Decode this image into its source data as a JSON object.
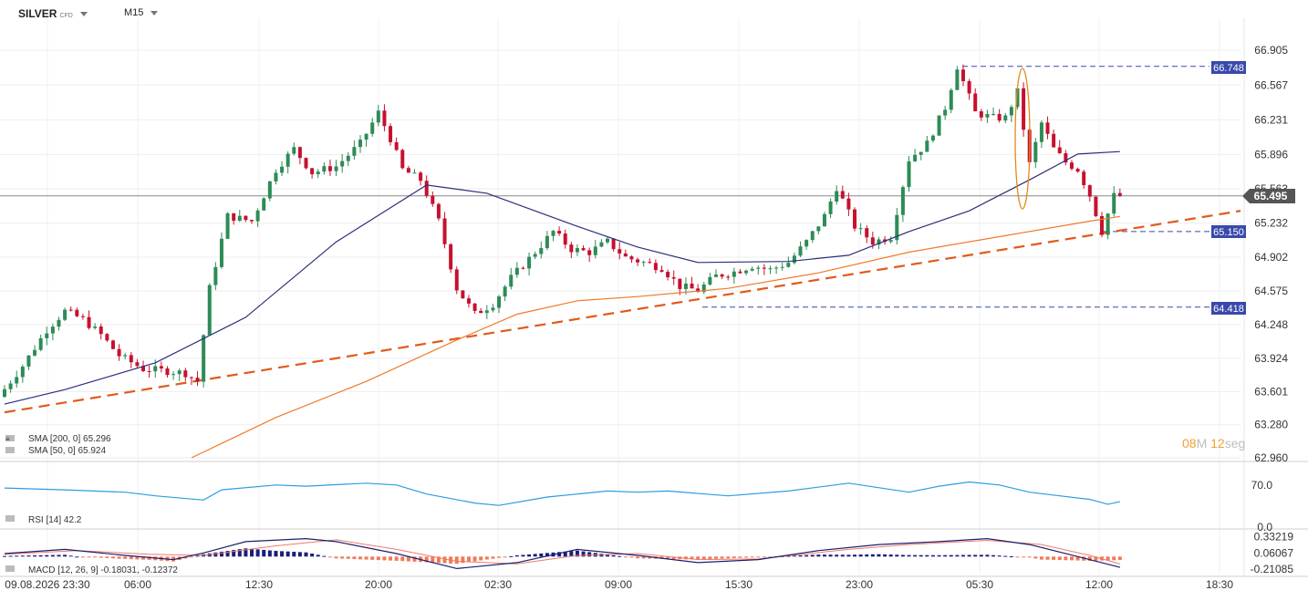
{
  "header": {
    "symbol": "SILVER",
    "instrument_type": "CFD",
    "timeframe": "M15"
  },
  "countdown": {
    "minutes": "08",
    "minutes_unit": "M",
    "seconds": "12",
    "seconds_unit": "seg"
  },
  "colors": {
    "bull": "#2e8b57",
    "bear": "#c8102e",
    "sma50": "#2b2f7a",
    "sma200": "#f07a2a",
    "trend": "#e05a1a",
    "level": "#3949ab",
    "rsi": "#2a9de0",
    "macd_line": "#1a1f6e",
    "signal_line": "#f07a6a",
    "hist_pos": "#1a1f7a",
    "hist_neg": "#f07a5a",
    "current_tag": "#555555"
  },
  "labels": {
    "sma200": "SMA [200, 0] 65.296",
    "sma50": "SMA [50, 0] 65.924",
    "rsi": "RSI [14] 42.2",
    "macd": "MACD [12, 26, 9] -0.18031, -0.12372"
  },
  "tags": {
    "current": "65.495",
    "resistance": "66.748",
    "support1": "65.150",
    "support2": "64.418"
  },
  "chart_data": [
    {
      "type": "candlestick",
      "title": "SILVER CFD M15",
      "y_ticks": [
        "66.905",
        "66.567",
        "66.231",
        "65.896",
        "65.563",
        "65.232",
        "64.902",
        "64.575",
        "64.248",
        "63.924",
        "63.601",
        "63.280",
        "62.960"
      ],
      "x_ticks": [
        "09.08.2026 23:30",
        "06:00",
        "12:30",
        "20:00",
        "02:30",
        "09:00",
        "15:30",
        "23:00",
        "05:30",
        "12:00",
        "18:30"
      ],
      "ylim": [
        62.96,
        66.905
      ],
      "close_path": [
        [
          0,
          63.55
        ],
        [
          4,
          63.85
        ],
        [
          8,
          64.2
        ],
        [
          11,
          64.38
        ],
        [
          14,
          64.3
        ],
        [
          17,
          64.15
        ],
        [
          20,
          63.95
        ],
        [
          24,
          63.82
        ],
        [
          28,
          63.8
        ],
        [
          31,
          63.78
        ],
        [
          33,
          63.7
        ],
        [
          35,
          64.6
        ],
        [
          38,
          65.3
        ],
        [
          42,
          65.25
        ],
        [
          46,
          65.75
        ],
        [
          49,
          65.95
        ],
        [
          52,
          65.72
        ],
        [
          56,
          65.78
        ],
        [
          60,
          66.0
        ],
        [
          63,
          66.3
        ],
        [
          65,
          66.05
        ],
        [
          67,
          65.75
        ],
        [
          70,
          65.65
        ],
        [
          73,
          65.25
        ],
        [
          76,
          64.6
        ],
        [
          79,
          64.35
        ],
        [
          82,
          64.45
        ],
        [
          85,
          64.7
        ],
        [
          89,
          64.95
        ],
        [
          92,
          65.15
        ],
        [
          95,
          64.98
        ],
        [
          98,
          64.95
        ],
        [
          101,
          65.05
        ],
        [
          104,
          64.9
        ],
        [
          107,
          64.85
        ],
        [
          110,
          64.8
        ],
        [
          113,
          64.62
        ],
        [
          116,
          64.58
        ],
        [
          119,
          64.72
        ],
        [
          122,
          64.76
        ],
        [
          125,
          64.82
        ],
        [
          128,
          64.78
        ],
        [
          131,
          64.85
        ],
        [
          134,
          65.05
        ],
        [
          137,
          65.3
        ],
        [
          139,
          65.58
        ],
        [
          142,
          65.2
        ],
        [
          145,
          65.05
        ],
        [
          148,
          65.1
        ],
        [
          151,
          65.85
        ],
        [
          154,
          66.0
        ],
        [
          157,
          66.35
        ],
        [
          159,
          66.75
        ],
        [
          162,
          66.3
        ],
        [
          165,
          66.25
        ],
        [
          167,
          66.25
        ],
        [
          169,
          66.5
        ],
        [
          171,
          65.8
        ],
        [
          173,
          66.2
        ],
        [
          175,
          65.95
        ],
        [
          177,
          65.82
        ],
        [
          179,
          65.75
        ],
        [
          181,
          65.5
        ],
        [
          183,
          65.15
        ],
        [
          185,
          65.495
        ]
      ],
      "sma50_path": [
        [
          0,
          63.48
        ],
        [
          10,
          63.62
        ],
        [
          25,
          63.88
        ],
        [
          40,
          64.32
        ],
        [
          55,
          65.05
        ],
        [
          70,
          65.6
        ],
        [
          80,
          65.52
        ],
        [
          95,
          65.2
        ],
        [
          105,
          65.0
        ],
        [
          115,
          64.85
        ],
        [
          130,
          64.86
        ],
        [
          140,
          64.92
        ],
        [
          150,
          65.15
        ],
        [
          160,
          65.35
        ],
        [
          170,
          65.65
        ],
        [
          178,
          65.9
        ],
        [
          185,
          65.924
        ]
      ],
      "sma200_path": [
        [
          31,
          62.96
        ],
        [
          45,
          63.35
        ],
        [
          60,
          63.7
        ],
        [
          75,
          64.1
        ],
        [
          85,
          64.35
        ],
        [
          95,
          64.48
        ],
        [
          105,
          64.52
        ],
        [
          120,
          64.6
        ],
        [
          135,
          64.75
        ],
        [
          150,
          64.95
        ],
        [
          165,
          65.1
        ],
        [
          180,
          65.25
        ],
        [
          185,
          65.296
        ]
      ],
      "trendline": [
        [
          0,
          63.4
        ],
        [
          205,
          65.35
        ]
      ],
      "levels": {
        "resistance": 66.748,
        "support1": 65.15,
        "support2": 64.418,
        "current": 65.495
      }
    },
    {
      "type": "line",
      "title": "RSI [14] 42.2",
      "y_ticks": [
        "70.0",
        "0.0"
      ],
      "ylim": [
        0,
        100
      ],
      "rsi_path": [
        [
          0,
          65
        ],
        [
          10,
          62
        ],
        [
          20,
          58
        ],
        [
          25,
          52
        ],
        [
          33,
          45
        ],
        [
          36,
          62
        ],
        [
          45,
          70
        ],
        [
          50,
          68
        ],
        [
          60,
          73
        ],
        [
          65,
          70
        ],
        [
          70,
          55
        ],
        [
          78,
          40
        ],
        [
          82,
          36
        ],
        [
          90,
          50
        ],
        [
          95,
          55
        ],
        [
          100,
          60
        ],
        [
          105,
          58
        ],
        [
          110,
          60
        ],
        [
          120,
          52
        ],
        [
          130,
          60
        ],
        [
          140,
          73
        ],
        [
          150,
          58
        ],
        [
          155,
          68
        ],
        [
          160,
          75
        ],
        [
          165,
          70
        ],
        [
          170,
          58
        ],
        [
          175,
          52
        ],
        [
          180,
          46
        ],
        [
          183,
          38
        ],
        [
          185,
          42.2
        ]
      ]
    },
    {
      "type": "bar",
      "title": "MACD [12, 26, 9] -0.18031, -0.12372",
      "y_ticks": [
        "0.33219",
        "0.06067",
        "-0.21085"
      ],
      "ylim": [
        -0.3,
        0.4
      ],
      "macd_path": [
        [
          0,
          0.05
        ],
        [
          10,
          0.12
        ],
        [
          20,
          0.02
        ],
        [
          28,
          -0.05
        ],
        [
          33,
          0.06
        ],
        [
          40,
          0.25
        ],
        [
          50,
          0.3
        ],
        [
          55,
          0.25
        ],
        [
          65,
          0.05
        ],
        [
          75,
          -0.2
        ],
        [
          85,
          -0.1
        ],
        [
          95,
          0.12
        ],
        [
          105,
          0.02
        ],
        [
          115,
          -0.1
        ],
        [
          125,
          -0.05
        ],
        [
          135,
          0.1
        ],
        [
          145,
          0.2
        ],
        [
          155,
          0.25
        ],
        [
          163,
          0.3
        ],
        [
          170,
          0.2
        ],
        [
          178,
          0.0
        ],
        [
          185,
          -0.18031
        ]
      ],
      "signal_path": [
        [
          0,
          0.04
        ],
        [
          12,
          0.1
        ],
        [
          24,
          0.04
        ],
        [
          33,
          0.02
        ],
        [
          45,
          0.18
        ],
        [
          55,
          0.28
        ],
        [
          65,
          0.12
        ],
        [
          75,
          -0.08
        ],
        [
          85,
          -0.12
        ],
        [
          95,
          0.02
        ],
        [
          105,
          0.05
        ],
        [
          115,
          -0.05
        ],
        [
          125,
          -0.04
        ],
        [
          140,
          0.12
        ],
        [
          150,
          0.2
        ],
        [
          163,
          0.27
        ],
        [
          172,
          0.2
        ],
        [
          180,
          0.02
        ],
        [
          185,
          -0.12372
        ]
      ]
    }
  ]
}
